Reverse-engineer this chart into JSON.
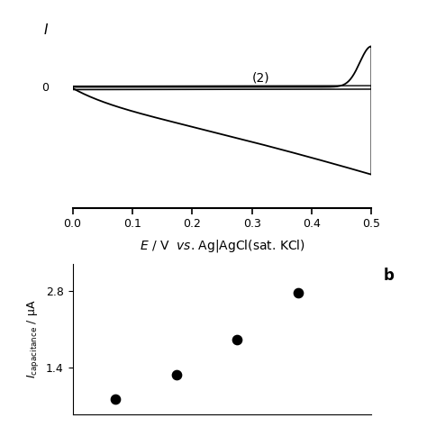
{
  "top_panel": {
    "label2": "(2)",
    "xlabel": "$E$ / V  $\\mathit{vs}$. Ag|AgCl(sat. KCl)",
    "ylabel": "$I$",
    "ylabel_0": "0",
    "xlim": [
      0.0,
      0.5
    ],
    "xticks": [
      0.0,
      0.1,
      0.2,
      0.3,
      0.4,
      0.5
    ],
    "xticklabels": [
      "0.0",
      "0.1",
      "0.2",
      "0.3",
      "0.4",
      "0.5"
    ]
  },
  "bottom_panel": {
    "ylabel": "$I_{\\mathrm{capacitance}}$ / μA",
    "label_b": "b",
    "scatter_x": [
      1,
      2,
      3,
      4
    ],
    "scatter_y": [
      0.83,
      1.28,
      1.92,
      2.78
    ],
    "yticks": [
      1.4,
      2.8
    ],
    "yticklabels": [
      "1.4",
      "2.8"
    ],
    "ylim": [
      0.55,
      3.3
    ]
  },
  "bg_color": "#ffffff",
  "line_color": "#000000"
}
